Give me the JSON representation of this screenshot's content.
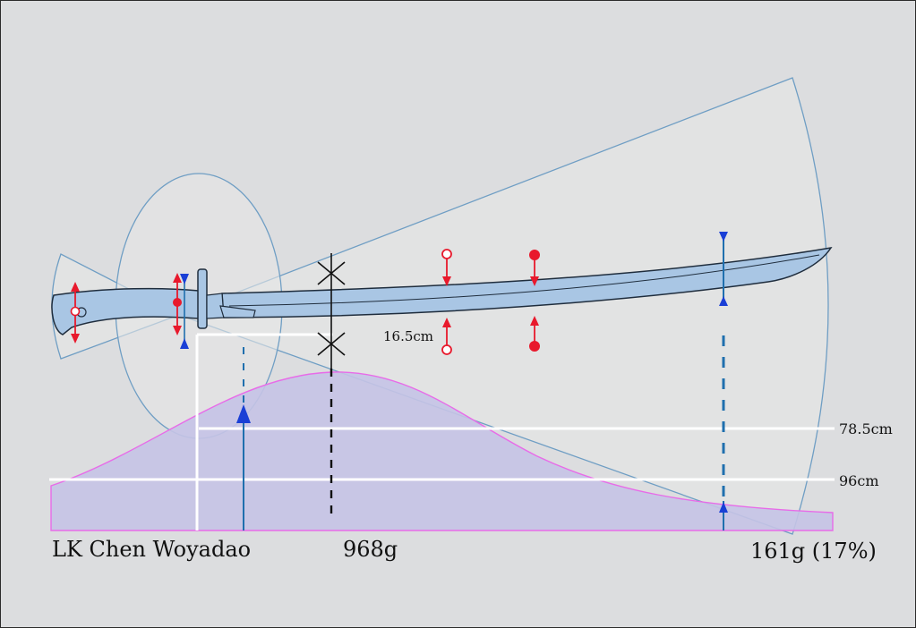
{
  "title": "LK Chen Woyadao",
  "measurements": {
    "total_mass": "968g",
    "blade_mass": "161g (17%)",
    "width_label": "16.5cm",
    "length_1": "78.5cm",
    "length_2": "96cm"
  },
  "colors": {
    "background": "#dcdddf",
    "blade_fill": "#a9c6e4",
    "blade_stroke": "#1f2d3d",
    "cone_stroke": "#6f9ec4",
    "mass_fill": "#c5c3e6",
    "mass_stroke": "#e86be8",
    "arrow_red": "#e8192c",
    "arrow_blue": "#1a3fd6",
    "guide_blue": "#1f6fae",
    "guide_white": "#ffffff"
  }
}
